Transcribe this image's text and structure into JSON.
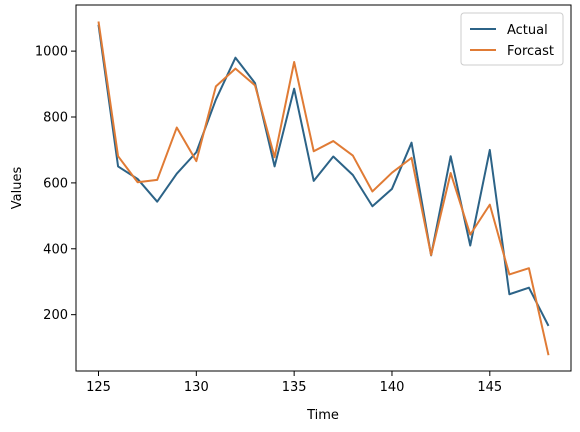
{
  "chart_data": {
    "type": "line",
    "title": "",
    "xlabel": "Time",
    "ylabel": "Values",
    "xlim": [
      123.85,
      149.15
    ],
    "ylim": [
      29,
      1140
    ],
    "xticks": [
      125,
      130,
      135,
      140,
      145
    ],
    "yticks": [
      200,
      400,
      600,
      800,
      1000
    ],
    "grid": false,
    "legend_position": "top-right",
    "x": [
      125,
      126,
      127,
      128,
      129,
      130,
      131,
      132,
      133,
      134,
      135,
      136,
      137,
      138,
      139,
      140,
      141,
      142,
      143,
      144,
      145,
      146,
      147,
      148
    ],
    "series": [
      {
        "name": "Actual",
        "color": "#2c6387",
        "values": [
          1080,
          650,
          612,
          543,
          628,
          693,
          853,
          980,
          903,
          650,
          886,
          606,
          680,
          624,
          529,
          582,
          722,
          380,
          681,
          410,
          700,
          262,
          282,
          166
        ]
      },
      {
        "name": "Forcast",
        "color": "#e07b35",
        "values": [
          1090,
          681,
          602,
          609,
          768,
          666,
          893,
          947,
          896,
          678,
          967,
          696,
          727,
          683,
          574,
          631,
          676,
          381,
          630,
          443,
          534,
          322,
          341,
          77
        ]
      }
    ]
  }
}
